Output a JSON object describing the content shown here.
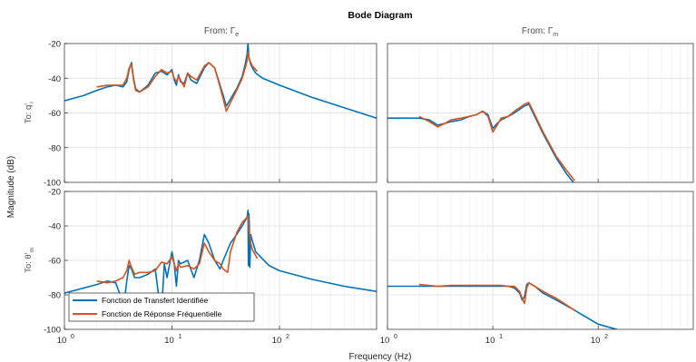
{
  "chart_data": {
    "type": "line",
    "title": "Bode Diagram",
    "xlabel": "Frequency  (Hz)",
    "ylabel": "Magnitude (dB)",
    "x_scale": "log",
    "grid": true,
    "legend_placement": "bottom-left",
    "col_titles": [
      "From: Γ",
      "From: Γ"
    ],
    "col_title_subscripts": [
      "e",
      "m"
    ],
    "row_titles": [
      "To: q'",
      "To: θ'"
    ],
    "row_title_subscripts": [
      "r",
      "m"
    ],
    "x_tick_labels": [
      {
        "label": "10",
        "exp": "0"
      },
      {
        "label": "10",
        "exp": "1"
      },
      {
        "label": "10",
        "exp": "2"
      }
    ],
    "y_tick_labels": [
      [
        "-20",
        "-40",
        "-60",
        "-80",
        "-100"
      ],
      [
        "-20",
        "-40",
        "-60",
        "-80",
        "-100"
      ]
    ],
    "ylim": [
      [
        -100,
        -20
      ],
      [
        -100,
        -20
      ]
    ],
    "xlim_left": [
      1,
      800
    ],
    "xlim_right": [
      1,
      800
    ],
    "series_styles": [
      {
        "name": "Fonction de Transfert Identifiée",
        "color": "#0072bd"
      },
      {
        "name": "Fonction de Réponse Fréquentielle",
        "color": "#d95319"
      }
    ],
    "panels": [
      {
        "id": "top-left",
        "series": [
          {
            "x": [
              1,
              1.5,
              2,
              2.5,
              3,
              3.5,
              3.8,
              4,
              4.2,
              4.4,
              4.6,
              5,
              6,
              7,
              8,
              9,
              10,
              10.5,
              11,
              11.5,
              12,
              13,
              14,
              15,
              17,
              20,
              22,
              25,
              28,
              30,
              32,
              35,
              40,
              45,
              48,
              50,
              51,
              52,
              54,
              56,
              60,
              70,
              100,
              200,
              400,
              800
            ],
            "y": [
              -53,
              -50,
              -47,
              -45,
              -44,
              -45,
              -42,
              -35,
              -31,
              -40,
              -46,
              -48,
              -44,
              -37,
              -36,
              -38,
              -35,
              -41,
              -44,
              -38,
              -42,
              -43,
              -37,
              -41,
              -43,
              -34,
              -31,
              -34,
              -44,
              -50,
              -56,
              -52,
              -46,
              -39,
              -32,
              -26,
              -20,
              -28,
              -32,
              -34,
              -37,
              -40,
              -44,
              -51,
              -57,
              -63
            ]
          },
          {
            "x": [
              2,
              2.5,
              3,
              3.5,
              3.8,
              4,
              4.2,
              4.4,
              4.6,
              5,
              6,
              7,
              8,
              9,
              10,
              10.5,
              11,
              11.5,
              12,
              13,
              14,
              15,
              17,
              20,
              22,
              25,
              28,
              30,
              32,
              35,
              40,
              45,
              48,
              50,
              51,
              52,
              54,
              56,
              60,
              62
            ],
            "y": [
              -45,
              -44,
              -44,
              -44,
              -40,
              -34,
              -32,
              -41,
              -47,
              -48,
              -45,
              -39,
              -35,
              -37,
              -36,
              -40,
              -42,
              -39,
              -41,
              -45,
              -37,
              -39,
              -41,
              -33,
              -31,
              -34,
              -45,
              -52,
              -59,
              -54,
              -47,
              -40,
              -34,
              -30,
              -25,
              -28,
              -31,
              -33,
              -35,
              -36
            ]
          }
        ]
      },
      {
        "id": "top-right",
        "series": [
          {
            "x": [
              1,
              2,
              2.5,
              3,
              3.5,
              4,
              5,
              6,
              7,
              8,
              9,
              10,
              11,
              12,
              14,
              16,
              20,
              22,
              25,
              30,
              40,
              50,
              60
            ],
            "y": [
              -63,
              -63,
              -64,
              -67,
              -66,
              -65,
              -64,
              -62,
              -61,
              -59,
              -61,
              -69,
              -66,
              -64,
              -62,
              -60,
              -56,
              -55,
              -62,
              -72,
              -86,
              -95,
              -101
            ]
          },
          {
            "x": [
              2,
              2.5,
              3,
              3.5,
              4,
              5,
              6,
              7,
              8,
              9,
              10,
              11,
              12,
              14,
              16,
              20,
              22,
              25,
              30,
              40,
              50,
              60
            ],
            "y": [
              -62,
              -65,
              -68,
              -66,
              -64,
              -63,
              -62,
              -61,
              -59,
              -62,
              -71,
              -67,
              -63,
              -62,
              -59,
              -55,
              -54,
              -61,
              -71,
              -85,
              -93,
              -99
            ]
          }
        ]
      },
      {
        "id": "bottom-left",
        "series": [
          {
            "x": [
              1,
              2,
              2.5,
              3,
              3.3,
              3.5,
              3.8,
              4,
              4.2,
              4.5,
              5,
              6,
              7,
              7.5,
              8,
              8.5,
              9,
              10,
              10.5,
              11,
              11.5,
              12,
              14,
              16,
              18,
              20,
              22,
              25,
              28,
              30,
              35,
              40,
              45,
              50,
              51,
              51.5,
              52,
              52.5,
              53,
              54,
              55,
              60,
              80,
              100,
              200,
              400,
              800
            ],
            "y": [
              -79,
              -74,
              -72,
              -73,
              -80,
              -90,
              -72,
              -63,
              -65,
              -70,
              -70,
              -68,
              -65,
              -80,
              -90,
              -62,
              -70,
              -55,
              -62,
              -75,
              -60,
              -62,
              -60,
              -70,
              -60,
              -45,
              -50,
              -60,
              -65,
              -60,
              -50,
              -45,
              -40,
              -35,
              -31,
              -63,
              -33,
              -40,
              -64,
              -45,
              -47,
              -55,
              -63,
              -66,
              -71,
              -75,
              -78
            ]
          },
          {
            "x": [
              2,
              2.5,
              3,
              3.5,
              3.8,
              4,
              4.2,
              4.5,
              5,
              6,
              7,
              8,
              9,
              10,
              10.5,
              11,
              11.5,
              12,
              14,
              16,
              18,
              20,
              22,
              25,
              28,
              30,
              33,
              35,
              40,
              45,
              50,
              51,
              52,
              53,
              54,
              56,
              60,
              62
            ],
            "y": [
              -72,
              -73,
              -72,
              -70,
              -66,
              -60,
              -64,
              -68,
              -67,
              -67,
              -66,
              -61,
              -62,
              -58,
              -62,
              -66,
              -62,
              -64,
              -63,
              -65,
              -62,
              -50,
              -55,
              -60,
              -62,
              -65,
              -67,
              -55,
              -44,
              -38,
              -35,
              -34,
              -42,
              -46,
              -50,
              -54,
              -57,
              -59
            ]
          }
        ]
      },
      {
        "id": "bottom-right",
        "series": [
          {
            "x": [
              1,
              2,
              3,
              4,
              5,
              6,
              8,
              10,
              12,
              14,
              16,
              18,
              19,
              20,
              21,
              22,
              25,
              30,
              40,
              60,
              100,
              150
            ],
            "y": [
              -75,
              -75,
              -75,
              -75,
              -75,
              -75,
              -75,
              -75,
              -75,
              -75,
              -76,
              -79,
              -83,
              -81,
              -74,
              -73,
              -75,
              -79,
              -83,
              -89,
              -97,
              -100
            ]
          },
          {
            "x": [
              2,
              3,
              4,
              5,
              6,
              8,
              10,
              12,
              14,
              16,
              18,
              19,
              20,
              21,
              22,
              25,
              30,
              40,
              60
            ],
            "y": [
              -74,
              -75,
              -74.5,
              -74.5,
              -74.5,
              -74.5,
              -74.5,
              -74.5,
              -75,
              -75,
              -78,
              -82,
              -85,
              -76,
              -73,
              -75,
              -78,
              -82,
              -89
            ]
          }
        ]
      }
    ]
  }
}
